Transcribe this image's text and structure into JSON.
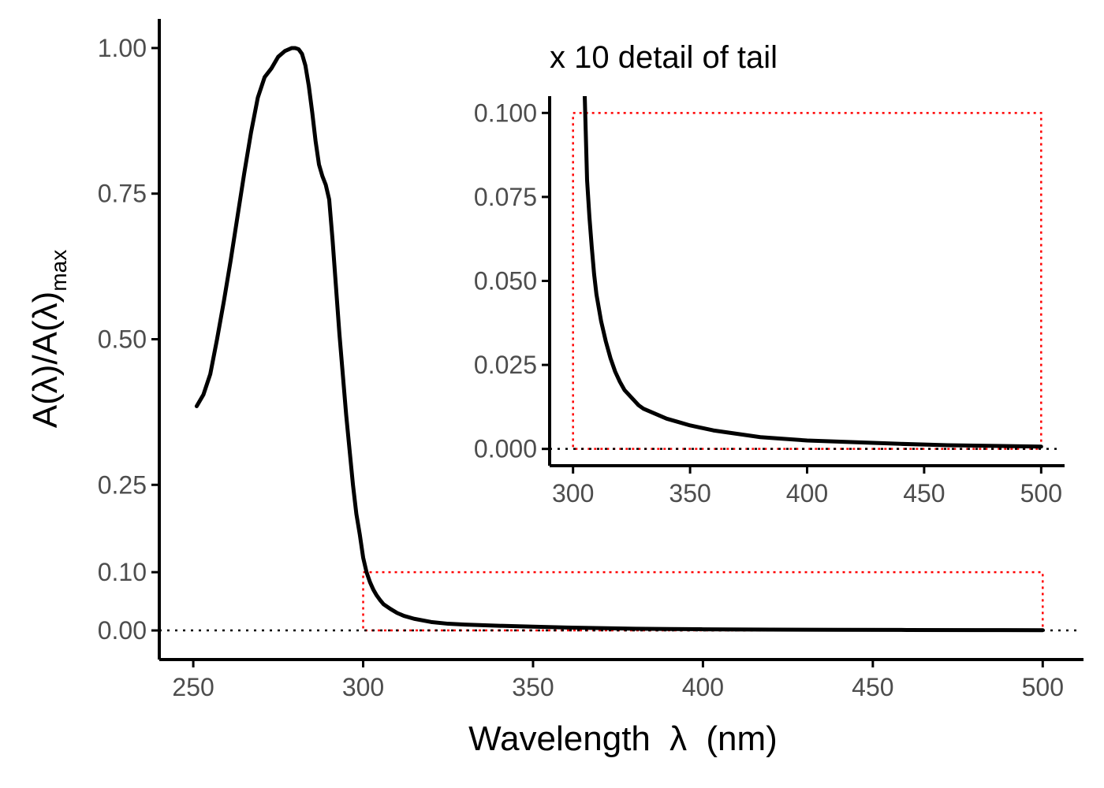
{
  "colors": {
    "line": "#000000",
    "zoom_box": "#ff0000",
    "baseline": "#000000",
    "tick_text": "#4d4d4d"
  },
  "chart_data": [
    {
      "type": "line",
      "panel": "main",
      "title": "",
      "xlabel": "Wavelength",
      "xlabel_symbol": "λ",
      "xlabel_unit": "(nm)",
      "ylabel": "A(λ)/A(λ)",
      "ylabel_subscript": "max",
      "xlim": [
        240,
        512
      ],
      "ylim": [
        -0.05,
        1.05
      ],
      "x_ticks": [
        "250",
        "300",
        "350",
        "400",
        "450",
        "500"
      ],
      "y_ticks": [
        "0.00",
        "0.10",
        "0.25",
        "0.50",
        "0.75",
        "1.00"
      ],
      "grid": false,
      "legend": "none",
      "reference_line": {
        "y": 0,
        "style": "dotted"
      },
      "zoom_region": {
        "x": [
          300,
          500
        ],
        "y": [
          0,
          0.1
        ],
        "style": "dotted red"
      },
      "series": [
        {
          "x": [
            251,
            253,
            255,
            257,
            259,
            261,
            263,
            265,
            267,
            269,
            271,
            273,
            275,
            277,
            279,
            280,
            281,
            282,
            283,
            284,
            285,
            286,
            287,
            288,
            289,
            290,
            291,
            292,
            293,
            294,
            295,
            296,
            297,
            298,
            299,
            300,
            301,
            302,
            303,
            304,
            305,
            306,
            308,
            310,
            312,
            315,
            320,
            325,
            330,
            340,
            350,
            360,
            370,
            380,
            390,
            400,
            420,
            440,
            460,
            480,
            500
          ],
          "y": [
            0.385,
            0.405,
            0.44,
            0.5,
            0.565,
            0.635,
            0.71,
            0.785,
            0.855,
            0.915,
            0.95,
            0.965,
            0.985,
            0.995,
            1.0,
            1.0,
            0.998,
            0.99,
            0.97,
            0.935,
            0.89,
            0.84,
            0.8,
            0.78,
            0.765,
            0.74,
            0.67,
            0.59,
            0.51,
            0.44,
            0.37,
            0.31,
            0.25,
            0.2,
            0.165,
            0.125,
            0.1,
            0.083,
            0.07,
            0.06,
            0.052,
            0.045,
            0.037,
            0.03,
            0.025,
            0.02,
            0.0145,
            0.0115,
            0.01,
            0.008,
            0.0065,
            0.005,
            0.004,
            0.003,
            0.0025,
            0.002,
            0.0015,
            0.0011,
            0.0008,
            0.0006,
            0.0004
          ]
        }
      ]
    },
    {
      "type": "line",
      "panel": "inset",
      "title": "x 10 detail of tail",
      "xlabel": "",
      "ylabel": "",
      "xlim": [
        290,
        510
      ],
      "ylim": [
        -0.005,
        0.105
      ],
      "x_ticks": [
        "300",
        "350",
        "400",
        "450",
        "500"
      ],
      "y_ticks": [
        "0.000",
        "0.025",
        "0.050",
        "0.075",
        "0.100"
      ],
      "grid": false,
      "legend": "none",
      "reference_line": {
        "y": 0,
        "style": "dotted"
      },
      "zoom_region": {
        "x": [
          300,
          500
        ],
        "y": [
          0,
          0.1
        ],
        "style": "dotted red"
      },
      "series": [
        {
          "x": [
            305,
            306,
            307,
            308,
            309,
            310,
            312,
            314,
            316,
            318,
            320,
            322,
            324,
            326,
            328,
            330,
            335,
            340,
            345,
            350,
            360,
            370,
            380,
            390,
            400,
            420,
            440,
            460,
            480,
            500
          ],
          "y": [
            0.105,
            0.08,
            0.069,
            0.06,
            0.052,
            0.046,
            0.038,
            0.032,
            0.027,
            0.023,
            0.02,
            0.0175,
            0.016,
            0.0145,
            0.013,
            0.012,
            0.0105,
            0.009,
            0.008,
            0.007,
            0.0055,
            0.0045,
            0.0035,
            0.003,
            0.0025,
            0.002,
            0.0015,
            0.0011,
            0.0009,
            0.0007
          ]
        }
      ]
    }
  ]
}
